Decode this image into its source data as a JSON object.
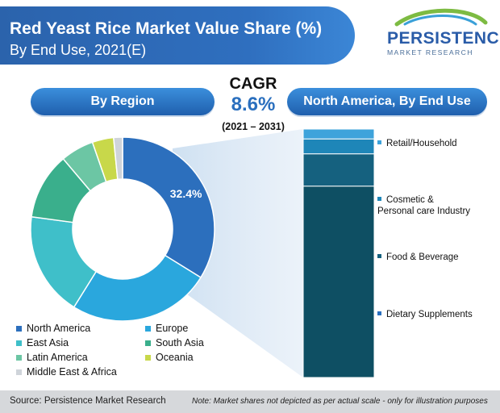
{
  "header": {
    "title_line1": "Red Yeast Rice Market Value Share (%)",
    "title_line2": "By End Use, 2021(E)"
  },
  "logo": {
    "name": "PERSISTENCE",
    "sub": "MARKET RESEARCH"
  },
  "cagr": {
    "label": "CAGR",
    "value": "8.6%",
    "period": "(2021 – 2031)"
  },
  "sections": {
    "left_title": "By Region",
    "right_title": "North America, By End Use"
  },
  "chart_data": [
    {
      "type": "pie",
      "title": "By Region",
      "series": [
        {
          "name": "North America",
          "value": 32.4,
          "color": "#2c6fbd",
          "label": "32.4%"
        },
        {
          "name": "Europe",
          "value": 24.0,
          "color": "#2aa7dd",
          "label": ""
        },
        {
          "name": "East Asia",
          "value": 17.5,
          "color": "#3fbfc9",
          "label": ""
        },
        {
          "name": "South Asia",
          "value": 11.2,
          "color": "#3aaf8c",
          "label": ""
        },
        {
          "name": "Latin America",
          "value": 5.6,
          "color": "#6cc6a4",
          "label": ""
        },
        {
          "name": "Oceania",
          "value": 3.6,
          "color": "#c8d84a",
          "label": ""
        },
        {
          "name": "Middle East & Africa",
          "value": 1.5,
          "color": "#cfd4da",
          "label": ""
        }
      ]
    },
    {
      "type": "bar",
      "title": "North America, By End Use",
      "stacked": true,
      "categories": [
        "Retail/Household",
        "Cosmetic & Personal care Industry",
        "Food & Beverage",
        "Dietary Supplements"
      ],
      "values": [
        4,
        6,
        13,
        77
      ],
      "colors": [
        "#3ea3db",
        "#1e86b8",
        "#15617f",
        "#0e4f63"
      ]
    }
  ],
  "legend": [
    {
      "label": "North America",
      "color": "#2c6fbd"
    },
    {
      "label": "Europe",
      "color": "#2aa7dd"
    },
    {
      "label": "East Asia",
      "color": "#3fbfc9"
    },
    {
      "label": "South Asia",
      "color": "#3aaf8c"
    },
    {
      "label": "Latin America",
      "color": "#6cc6a4"
    },
    {
      "label": "Oceania",
      "color": "#c8d84a"
    },
    {
      "label": "Middle East & Africa",
      "color": "#cfd4da"
    }
  ],
  "bar_labels": [
    {
      "text": "Retail/Household",
      "color": "#3ea3db"
    },
    {
      "text": "Cosmetic & Personal care Industry",
      "color": "#1e86b8"
    },
    {
      "text": "Food & Beverage",
      "color": "#15617f"
    },
    {
      "text": "Dietary Supplements",
      "color": "#2a6fbe"
    }
  ],
  "footer": {
    "source": "Source: Persistence Market Research",
    "note": "Note: Market shares not depicted as per actual scale - only for illustration purposes"
  }
}
